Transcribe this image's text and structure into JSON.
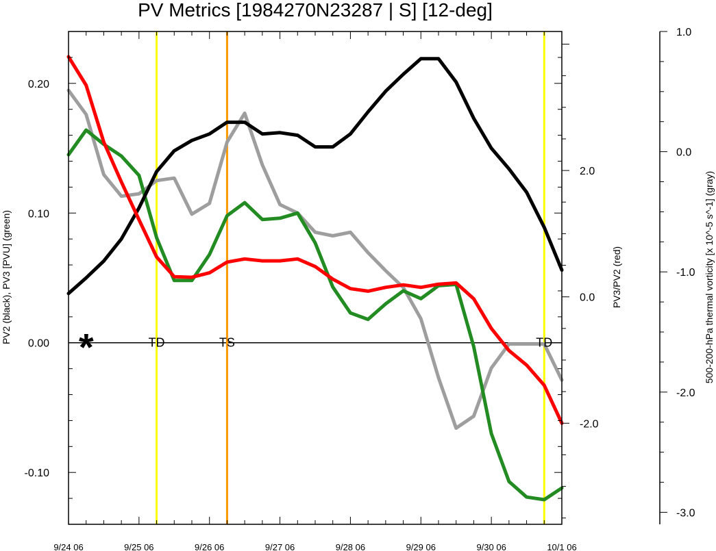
{
  "chart_data": {
    "type": "line",
    "title": "PV Metrics [1984270N23287 | S] [12-deg]",
    "x_tick_labels": [
      "9/24 06",
      "9/25 06",
      "9/26 06",
      "9/27 06",
      "9/28 06",
      "9/29 06",
      "9/30 06",
      "10/1 06"
    ],
    "x_range": [
      0,
      7
    ],
    "left_axis": {
      "label": "PV2 (black), PV3 [PVU] (green)",
      "range": [
        -0.14,
        0.24
      ],
      "tick_labels": [
        "0.20",
        "0.10",
        "0.00",
        "-0.10"
      ],
      "tick_values": [
        0.2,
        0.1,
        0.0,
        -0.1
      ]
    },
    "right_axis": {
      "label": "PV3/PV2 (red)",
      "range": [
        -3.6,
        4.2
      ],
      "tick_labels": [
        "2.0",
        "0.0",
        "-2.0"
      ],
      "tick_values": [
        2.0,
        0.0,
        -2.0
      ]
    },
    "far_right_axis": {
      "label": "500-200-hPa thermal vorticity [x 10^-5 s^-1] (gray)",
      "range": [
        -3.1,
        1.0
      ],
      "tick_labels": [
        "1.0",
        "0.0",
        "-1.0",
        "-2.0",
        "-3.0"
      ],
      "tick_values": [
        1.0,
        0.0,
        -1.0,
        -2.0,
        -3.0
      ]
    },
    "series": [
      {
        "color": "#000000",
        "axis": "left",
        "points": [
          [
            0,
            0.038
          ],
          [
            0.25,
            0.05
          ],
          [
            0.5,
            0.063
          ],
          [
            0.75,
            0.08
          ],
          [
            1.0,
            0.104
          ],
          [
            1.25,
            0.132
          ],
          [
            1.5,
            0.148
          ],
          [
            1.75,
            0.156
          ],
          [
            2.0,
            0.161
          ],
          [
            2.25,
            0.17
          ],
          [
            2.5,
            0.17
          ],
          [
            2.75,
            0.161
          ],
          [
            3.0,
            0.162
          ],
          [
            3.25,
            0.16
          ],
          [
            3.5,
            0.151
          ],
          [
            3.75,
            0.151
          ],
          [
            4.0,
            0.161
          ],
          [
            4.25,
            0.178
          ],
          [
            4.5,
            0.194
          ],
          [
            4.75,
            0.207
          ],
          [
            5.0,
            0.219
          ],
          [
            5.25,
            0.219
          ],
          [
            5.5,
            0.201
          ],
          [
            5.75,
            0.173
          ],
          [
            6.0,
            0.15
          ],
          [
            6.25,
            0.134
          ],
          [
            6.5,
            0.116
          ],
          [
            6.75,
            0.089
          ],
          [
            7.0,
            0.056
          ]
        ]
      },
      {
        "color": "#228b22",
        "axis": "left",
        "points": [
          [
            0,
            0.145
          ],
          [
            0.25,
            0.164
          ],
          [
            0.5,
            0.153
          ],
          [
            0.75,
            0.144
          ],
          [
            1.0,
            0.129
          ],
          [
            1.25,
            0.081
          ],
          [
            1.5,
            0.048
          ],
          [
            1.75,
            0.048
          ],
          [
            2.0,
            0.068
          ],
          [
            2.25,
            0.098
          ],
          [
            2.5,
            0.108
          ],
          [
            2.75,
            0.095
          ],
          [
            3.0,
            0.096
          ],
          [
            3.25,
            0.1
          ],
          [
            3.5,
            0.077
          ],
          [
            3.75,
            0.043
          ],
          [
            4.0,
            0.023
          ],
          [
            4.25,
            0.018
          ],
          [
            4.5,
            0.03
          ],
          [
            4.75,
            0.04
          ],
          [
            5.0,
            0.034
          ],
          [
            5.25,
            0.044
          ],
          [
            5.5,
            0.045
          ],
          [
            5.75,
            -0.003
          ],
          [
            6.0,
            -0.07
          ],
          [
            6.25,
            -0.107
          ],
          [
            6.5,
            -0.119
          ],
          [
            6.75,
            -0.121
          ],
          [
            7.0,
            -0.112
          ]
        ]
      },
      {
        "color": "#ff0000",
        "axis": "right",
        "points": [
          [
            0,
            3.8
          ],
          [
            0.25,
            3.35
          ],
          [
            0.5,
            2.45
          ],
          [
            0.75,
            1.82
          ],
          [
            1.0,
            1.22
          ],
          [
            1.25,
            0.63
          ],
          [
            1.5,
            0.32
          ],
          [
            1.75,
            0.31
          ],
          [
            2.0,
            0.38
          ],
          [
            2.25,
            0.55
          ],
          [
            2.5,
            0.6
          ],
          [
            2.75,
            0.57
          ],
          [
            3.0,
            0.57
          ],
          [
            3.25,
            0.6
          ],
          [
            3.5,
            0.48
          ],
          [
            3.75,
            0.28
          ],
          [
            4.0,
            0.13
          ],
          [
            4.25,
            0.09
          ],
          [
            4.5,
            0.15
          ],
          [
            4.75,
            0.19
          ],
          [
            5.0,
            0.15
          ],
          [
            5.25,
            0.2
          ],
          [
            5.5,
            0.22
          ],
          [
            5.75,
            -0.03
          ],
          [
            6.0,
            -0.5
          ],
          [
            6.25,
            -0.85
          ],
          [
            6.5,
            -1.08
          ],
          [
            6.75,
            -1.4
          ],
          [
            7.0,
            -2.0
          ]
        ]
      },
      {
        "color": "#9e9e9e",
        "axis": "far_right",
        "points": [
          [
            0,
            0.51
          ],
          [
            0.25,
            0.31
          ],
          [
            0.5,
            -0.19
          ],
          [
            0.75,
            -0.37
          ],
          [
            1.0,
            -0.35
          ],
          [
            1.25,
            -0.24
          ],
          [
            1.5,
            -0.22
          ],
          [
            1.75,
            -0.52
          ],
          [
            2.0,
            -0.43
          ],
          [
            2.25,
            0.08
          ],
          [
            2.5,
            0.32
          ],
          [
            2.75,
            -0.11
          ],
          [
            3.0,
            -0.44
          ],
          [
            3.25,
            -0.51
          ],
          [
            3.5,
            -0.67
          ],
          [
            3.75,
            -0.7
          ],
          [
            4.0,
            -0.67
          ],
          [
            4.25,
            -0.84
          ],
          [
            4.5,
            -0.99
          ],
          [
            4.75,
            -1.13
          ],
          [
            5.0,
            -1.39
          ],
          [
            5.25,
            -1.88
          ],
          [
            5.5,
            -2.3
          ],
          [
            5.75,
            -2.2
          ],
          [
            6.0,
            -1.8
          ],
          [
            6.25,
            -1.6
          ],
          [
            6.5,
            -1.6
          ],
          [
            6.75,
            -1.6
          ],
          [
            7.0,
            -1.9
          ]
        ]
      }
    ],
    "vertical_markers": [
      {
        "x": 1.25,
        "color": "#ffff00",
        "label": "TD"
      },
      {
        "x": 2.25,
        "color": "#ff9900",
        "label": "TS"
      },
      {
        "x": 6.75,
        "color": "#ffff00",
        "label": "TD"
      }
    ],
    "star_marker": {
      "x": 0.25,
      "y": 0.0,
      "symbol": "*"
    },
    "zero_line": 0.0
  }
}
